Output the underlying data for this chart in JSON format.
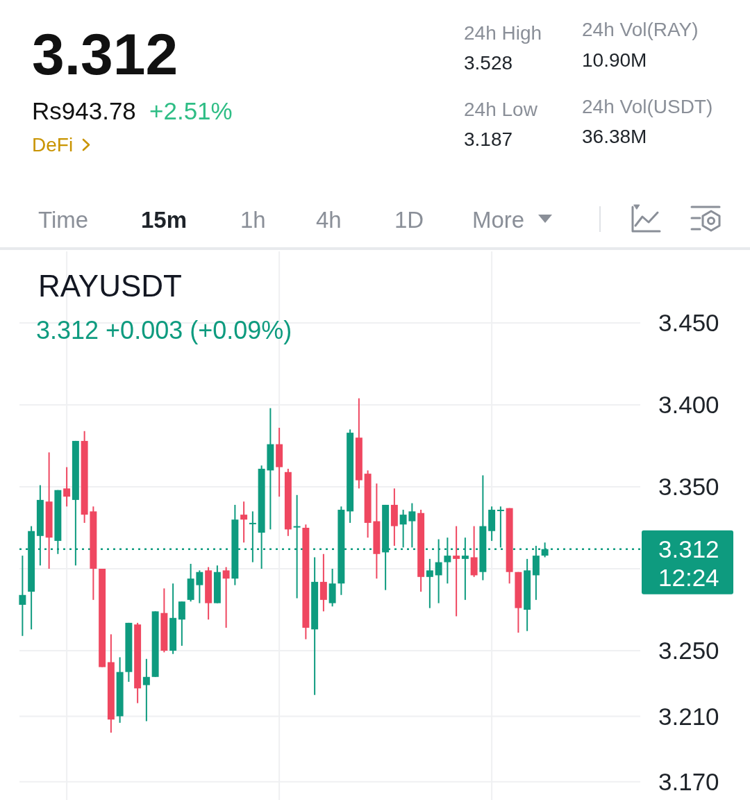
{
  "chart_data": {
    "type": "candlestick",
    "title": "RAYUSDT",
    "subtitle": "3.312 +0.003 (+0.09%)",
    "annotations": [
      "3.312",
      "Rs943.78",
      "+2.51%",
      "DeFi",
      "24h High",
      "3.528",
      "24h Low",
      "3.187",
      "24h Vol(RAY)",
      "10.90M",
      "24h Vol(USDT)",
      "36.38M",
      "Time",
      "15m",
      "1h",
      "4h",
      "1D",
      "More"
    ],
    "categories": [
      null,
      null,
      null,
      null,
      null,
      null,
      null,
      null,
      null,
      null,
      null,
      null,
      null,
      null,
      null,
      null,
      null,
      null,
      null,
      null,
      null,
      null,
      null,
      null,
      null,
      null,
      null,
      null,
      null,
      null,
      null,
      null,
      null,
      null,
      null,
      null,
      null,
      null,
      null,
      null,
      null,
      null,
      null,
      null,
      null,
      null,
      null,
      null,
      null,
      null,
      null,
      null,
      null,
      null,
      null,
      null,
      null,
      null,
      null,
      null
    ],
    "ohlc": [
      [
        3.278,
        3.308,
        3.259,
        3.284
      ],
      [
        3.286,
        3.326,
        3.263,
        3.323
      ],
      [
        3.32,
        3.351,
        3.302,
        3.342
      ],
      [
        3.341,
        3.371,
        3.3,
        3.319
      ],
      [
        3.317,
        3.348,
        3.309,
        3.348
      ],
      [
        3.349,
        3.362,
        3.338,
        3.344
      ],
      [
        3.342,
        3.378,
        3.302,
        3.378
      ],
      [
        3.378,
        3.384,
        3.328,
        3.333
      ],
      [
        3.335,
        3.338,
        3.281,
        3.3
      ],
      [
        3.3,
        3.3,
        3.24,
        3.24
      ],
      [
        3.243,
        3.26,
        3.2,
        3.208
      ],
      [
        3.21,
        3.246,
        3.206,
        3.237
      ],
      [
        3.237,
        3.267,
        3.231,
        3.267
      ],
      [
        3.266,
        3.267,
        3.218,
        3.227
      ],
      [
        3.229,
        3.245,
        3.207,
        3.234
      ],
      [
        3.234,
        3.274,
        3.234,
        3.274
      ],
      [
        3.273,
        3.288,
        3.249,
        3.25
      ],
      [
        3.25,
        3.291,
        3.248,
        3.27
      ],
      [
        3.269,
        3.28,
        3.253,
        3.28
      ],
      [
        3.281,
        3.303,
        3.28,
        3.294
      ],
      [
        3.29,
        3.299,
        3.279,
        3.298
      ],
      [
        3.299,
        3.301,
        3.269,
        3.279
      ],
      [
        3.279,
        3.302,
        3.279,
        3.298
      ],
      [
        3.299,
        3.301,
        3.264,
        3.294
      ],
      [
        3.294,
        3.339,
        3.29,
        3.33
      ],
      [
        3.333,
        3.341,
        3.316,
        3.33
      ],
      [
        3.328,
        3.335,
        3.304,
        3.328
      ],
      [
        3.322,
        3.363,
        3.3,
        3.361
      ],
      [
        3.36,
        3.398,
        3.324,
        3.376
      ],
      [
        3.376,
        3.386,
        3.344,
        3.362
      ],
      [
        3.359,
        3.361,
        3.32,
        3.324
      ],
      [
        3.326,
        3.345,
        3.282,
        3.326
      ],
      [
        3.325,
        3.327,
        3.257,
        3.264
      ],
      [
        3.263,
        3.307,
        3.223,
        3.292
      ],
      [
        3.292,
        3.309,
        3.274,
        3.281
      ],
      [
        3.279,
        3.3,
        3.277,
        3.291
      ],
      [
        3.291,
        3.338,
        3.284,
        3.336
      ],
      [
        3.335,
        3.385,
        3.328,
        3.383
      ],
      [
        3.38,
        3.404,
        3.349,
        3.354
      ],
      [
        3.358,
        3.36,
        3.319,
        3.328
      ],
      [
        3.329,
        3.352,
        3.294,
        3.309
      ],
      [
        3.31,
        3.339,
        3.287,
        3.339
      ],
      [
        3.339,
        3.349,
        3.314,
        3.326
      ],
      [
        3.327,
        3.336,
        3.313,
        3.333
      ],
      [
        3.329,
        3.34,
        3.313,
        3.335
      ],
      [
        3.334,
        3.336,
        3.286,
        3.295
      ],
      [
        3.295,
        3.306,
        3.276,
        3.299
      ],
      [
        3.296,
        3.318,
        3.279,
        3.304
      ],
      [
        3.304,
        3.319,
        3.291,
        3.308
      ],
      [
        3.308,
        3.326,
        3.271,
        3.306
      ],
      [
        3.306,
        3.319,
        3.281,
        3.308
      ],
      [
        3.307,
        3.326,
        3.295,
        3.296
      ],
      [
        3.298,
        3.357,
        3.293,
        3.326
      ],
      [
        3.323,
        3.338,
        3.317,
        3.336
      ],
      [
        3.336,
        3.338,
        3.313,
        3.336
      ],
      [
        3.337,
        3.337,
        3.291,
        3.298
      ],
      [
        3.298,
        3.298,
        3.261,
        3.276
      ],
      [
        3.275,
        3.306,
        3.262,
        3.299
      ],
      [
        3.296,
        3.314,
        3.281,
        3.308
      ],
      [
        3.308,
        3.316,
        3.307,
        3.312
      ]
    ],
    "colors": [
      "#0e9b7f",
      "#0e9b7f",
      "#0e9b7f",
      "#ef4760",
      "#0e9b7f",
      "#ef4760",
      "#0e9b7f",
      "#ef4760",
      "#ef4760",
      "#ef4760",
      "#ef4760",
      "#0e9b7f",
      "#0e9b7f",
      "#ef4760",
      "#0e9b7f",
      "#0e9b7f",
      "#ef4760",
      "#0e9b7f",
      "#0e9b7f",
      "#0e9b7f",
      "#0e9b7f",
      "#ef4760",
      "#0e9b7f",
      "#ef4760",
      "#0e9b7f",
      "#ef4760",
      "#0e9b7f",
      "#0e9b7f",
      "#0e9b7f",
      "#ef4760",
      "#ef4760",
      "#0e9b7f",
      "#ef4760",
      "#0e9b7f",
      "#ef4760",
      "#0e9b7f",
      "#0e9b7f",
      "#0e9b7f",
      "#ef4760",
      "#ef4760",
      "#ef4760",
      "#0e9b7f",
      "#ef4760",
      "#0e9b7f",
      "#0e9b7f",
      "#ef4760",
      "#0e9b7f",
      "#0e9b7f",
      "#0e9b7f",
      "#ef4760",
      "#0e9b7f",
      "#ef4760",
      "#0e9b7f",
      "#0e9b7f",
      "#0e9b7f",
      "#ef4760",
      "#ef4760",
      "#0e9b7f",
      "#0e9b7f",
      "#0e9b7f"
    ],
    "ylim": [
      3.16,
      3.45
    ],
    "yticks": [
      {
        "value": 3.45,
        "label": "3.450"
      },
      {
        "value": 3.4,
        "label": "3.400"
      },
      {
        "value": 3.35,
        "label": "3.350"
      },
      {
        "value": 3.3,
        "label": null
      },
      {
        "value": 3.25,
        "label": "3.250"
      },
      {
        "value": 3.21,
        "label": "3.210"
      },
      {
        "value": 3.17,
        "label": "3.170"
      }
    ],
    "ref_lines": [
      {
        "axis": "y",
        "value": 3.312,
        "label": "3.312\n12:24",
        "color": "#0e9b7f",
        "line_style": "dotted"
      }
    ],
    "grid": true,
    "tick_labels": "y"
  }
}
